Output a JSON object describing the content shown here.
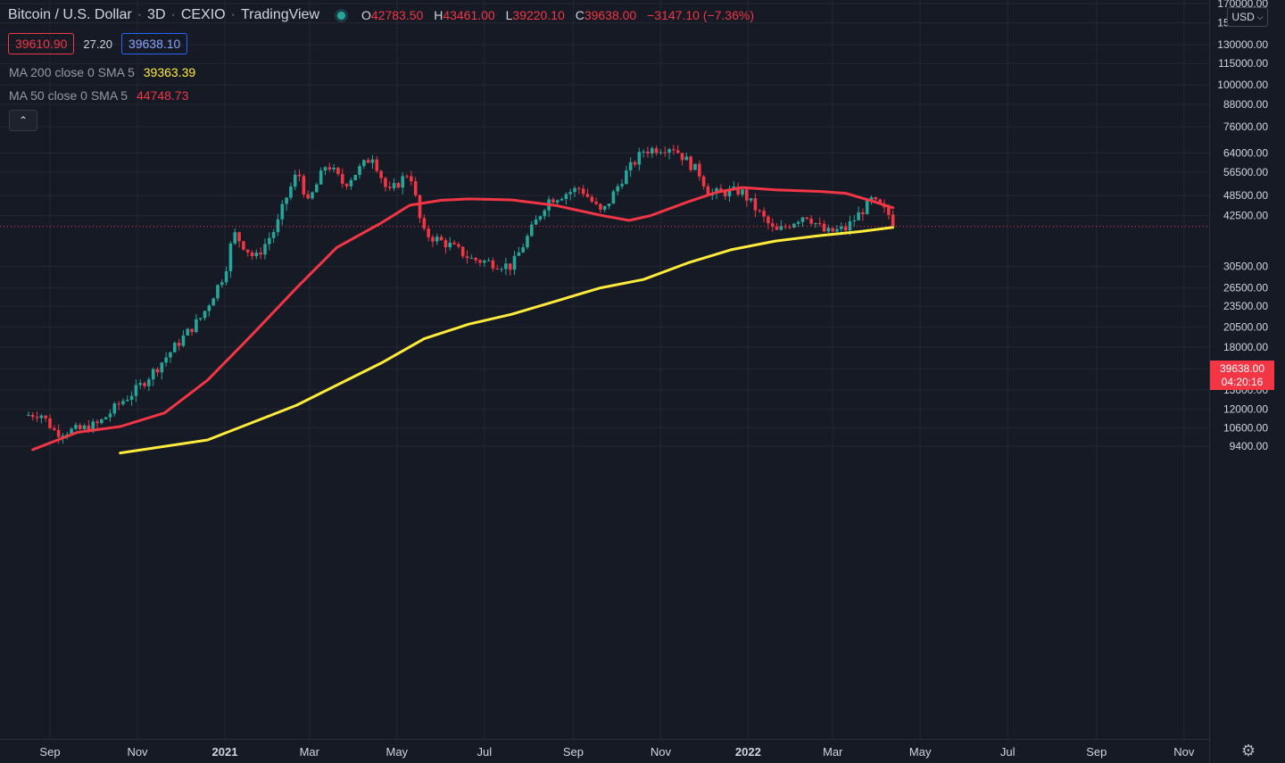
{
  "header": {
    "symbol": "Bitcoin / U.S. Dollar",
    "interval": "3D",
    "exchange": "CEXIO",
    "source": "TradingView",
    "open_label": "O",
    "open": "42783.50",
    "high_label": "H",
    "high": "43461.00",
    "low_label": "L",
    "low": "39220.10",
    "close_label": "C",
    "close": "39638.00",
    "change": "−3147.10 (−7.36%)"
  },
  "quotes": {
    "bid": "39610.90",
    "spread": "27.20",
    "ask": "39638.10"
  },
  "indicators": [
    {
      "label": "MA 200 close 0 SMA 5",
      "value": "39363.39",
      "color": "#ffeb3b"
    },
    {
      "label": "MA 50 close 0 SMA 5",
      "value": "44748.73",
      "color": "#f23645"
    }
  ],
  "controls": {
    "collapse_icon": "chevron-up",
    "currency": "USD",
    "settings_icon": "gear"
  },
  "last_price": {
    "price": "39638.00",
    "countdown": "04:20:16",
    "color": "#f23645"
  },
  "colors": {
    "up": "#26a69a",
    "down": "#f23645",
    "ma200": "#ffeb3b",
    "ma50": "#f23645",
    "background": "#161a25",
    "grid": "#242733"
  },
  "chart_data": {
    "type": "candlestick",
    "scale": "log",
    "grid": true,
    "y_ticks": [
      "170000.00",
      "150000.00",
      "130000.00",
      "115000.00",
      "100000.00",
      "88000.00",
      "76000.00",
      "64000.00",
      "56500.00",
      "48500.00",
      "42500.00",
      "30500.00",
      "26500.00",
      "23500.00",
      "20500.00",
      "18000.00",
      "15600.00",
      "13600.00",
      "12000.00",
      "10600.00",
      "9400.00"
    ],
    "x_ticks": [
      {
        "label": "Sep",
        "date": "2020-09-01",
        "bold": false
      },
      {
        "label": "Nov",
        "date": "2020-11-01",
        "bold": false
      },
      {
        "label": "2021",
        "date": "2021-01-01",
        "bold": true
      },
      {
        "label": "Mar",
        "date": "2021-03-01",
        "bold": false
      },
      {
        "label": "May",
        "date": "2021-05-01",
        "bold": false
      },
      {
        "label": "Jul",
        "date": "2021-07-01",
        "bold": false
      },
      {
        "label": "Sep",
        "date": "2021-09-01",
        "bold": false
      },
      {
        "label": "Nov",
        "date": "2021-11-01",
        "bold": false
      },
      {
        "label": "2022",
        "date": "2022-01-01",
        "bold": true
      },
      {
        "label": "Mar",
        "date": "2022-03-01",
        "bold": false
      },
      {
        "label": "May",
        "date": "2022-05-01",
        "bold": false
      },
      {
        "label": "Jul",
        "date": "2022-07-01",
        "bold": false
      },
      {
        "label": "Sep",
        "date": "2022-09-01",
        "bold": false
      },
      {
        "label": "Nov",
        "date": "2022-11-01",
        "bold": false
      }
    ],
    "series_close": [
      [
        "2020-08-14",
        11500
      ],
      [
        "2020-08-25",
        11700
      ],
      [
        "2020-09-05",
        10300
      ],
      [
        "2020-09-23",
        10500
      ],
      [
        "2020-10-05",
        10900
      ],
      [
        "2020-10-20",
        12500
      ],
      [
        "2020-11-01",
        13700
      ],
      [
        "2020-11-15",
        15800
      ],
      [
        "2020-12-01",
        18800
      ],
      [
        "2020-12-16",
        22000
      ],
      [
        "2021-01-01",
        29300
      ],
      [
        "2021-01-07",
        38000
      ],
      [
        "2021-01-22",
        32000
      ],
      [
        "2021-02-06",
        39500
      ],
      [
        "2021-02-12",
        47000
      ],
      [
        "2021-02-21",
        57000
      ],
      [
        "2021-02-28",
        46000
      ],
      [
        "2021-03-13",
        60000
      ],
      [
        "2021-03-25",
        52000
      ],
      [
        "2021-04-14",
        63000
      ],
      [
        "2021-04-25",
        49000
      ],
      [
        "2021-05-10",
        57000
      ],
      [
        "2021-05-19",
        38000
      ],
      [
        "2021-06-07",
        35000
      ],
      [
        "2021-06-22",
        32000
      ],
      [
        "2021-07-20",
        30500
      ],
      [
        "2021-08-14",
        47000
      ],
      [
        "2021-09-06",
        51000
      ],
      [
        "2021-09-21",
        43000
      ],
      [
        "2021-10-06",
        55000
      ],
      [
        "2021-10-20",
        65000
      ],
      [
        "2021-11-09",
        67000
      ],
      [
        "2021-11-28",
        56000
      ],
      [
        "2021-12-05",
        49000
      ],
      [
        "2021-12-27",
        50000
      ],
      [
        "2022-01-20",
        38000
      ],
      [
        "2022-02-10",
        43000
      ],
      [
        "2022-02-24",
        38000
      ],
      [
        "2022-03-10",
        39000
      ],
      [
        "2022-03-28",
        47000
      ],
      [
        "2022-04-09",
        42800
      ],
      [
        "2022-04-12",
        39638
      ]
    ],
    "ma50": [
      [
        "2020-08-20",
        9200
      ],
      [
        "2020-09-20",
        10300
      ],
      [
        "2020-10-20",
        10700
      ],
      [
        "2020-11-20",
        11700
      ],
      [
        "2020-12-20",
        14500
      ],
      [
        "2021-01-20",
        19500
      ],
      [
        "2021-02-20",
        26500
      ],
      [
        "2021-03-20",
        34500
      ],
      [
        "2021-04-20",
        40500
      ],
      [
        "2021-05-10",
        45500
      ],
      [
        "2021-06-01",
        47000
      ],
      [
        "2021-06-20",
        47400
      ],
      [
        "2021-07-20",
        47100
      ],
      [
        "2021-08-20",
        45400
      ],
      [
        "2021-09-20",
        42600
      ],
      [
        "2021-10-10",
        41200
      ],
      [
        "2021-10-25",
        42500
      ],
      [
        "2021-11-20",
        46500
      ],
      [
        "2021-12-10",
        49500
      ],
      [
        "2021-12-28",
        51100
      ],
      [
        "2022-01-20",
        50300
      ],
      [
        "2022-02-20",
        49800
      ],
      [
        "2022-03-10",
        49200
      ],
      [
        "2022-03-28",
        46800
      ],
      [
        "2022-04-12",
        44750
      ]
    ],
    "ma200": [
      [
        "2020-10-20",
        9000
      ],
      [
        "2020-12-20",
        9800
      ],
      [
        "2021-02-20",
        12300
      ],
      [
        "2021-04-20",
        16200
      ],
      [
        "2021-05-20",
        19000
      ],
      [
        "2021-06-20",
        20900
      ],
      [
        "2021-07-20",
        22300
      ],
      [
        "2021-08-20",
        24300
      ],
      [
        "2021-09-20",
        26500
      ],
      [
        "2021-10-20",
        28000
      ],
      [
        "2021-11-20",
        31200
      ],
      [
        "2021-12-20",
        34000
      ],
      [
        "2022-01-20",
        36000
      ],
      [
        "2022-02-20",
        37300
      ],
      [
        "2022-03-20",
        38300
      ],
      [
        "2022-04-12",
        39360
      ]
    ]
  }
}
